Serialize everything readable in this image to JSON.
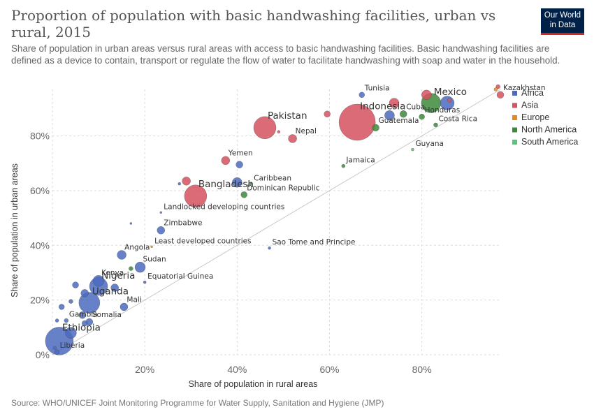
{
  "header": {
    "title": "Proportion of population with basic handwashing facilities, urban vs rural, 2015",
    "subtitle": "Share of population in urban areas versus rural areas with access to basic handwashing facilities. Basic handwashing facilities are defined as a device to contain, transport or regulate the flow of water to facilitate handwashing with soap and water in the household.",
    "logo_line1": "Our World",
    "logo_line2": "in Data"
  },
  "footer": {
    "source": "Source: WHO/UNICEF Joint Monitoring Programme for Water Supply, Sanitation and Hygiene (JMP)"
  },
  "chart_data": {
    "type": "scatter",
    "xlabel": "Share of population in rural areas",
    "ylabel": "Share of population in urban areas",
    "xlim": [
      0,
      97
    ],
    "ylim": [
      0,
      97
    ],
    "x_ticks": [
      20,
      40,
      60,
      80
    ],
    "x_tick_labels": [
      "20%",
      "40%",
      "60%",
      "80%"
    ],
    "y_ticks": [
      0,
      20,
      40,
      60,
      80
    ],
    "y_tick_labels": [
      "0%",
      "20%",
      "40%",
      "60%",
      "80%"
    ],
    "grid": true,
    "diagonal_line": true,
    "legend_position": "right",
    "legend": [
      {
        "name": "Africa",
        "color": "#4c6bbf"
      },
      {
        "name": "Asia",
        "color": "#d5525f"
      },
      {
        "name": "Europe",
        "color": "#e88a19"
      },
      {
        "name": "North America",
        "color": "#3c8a3a"
      },
      {
        "name": "South America",
        "color": "#5fc27a"
      }
    ],
    "points": [
      {
        "label": "Tunisia",
        "region": "Africa",
        "x": 67,
        "y": 95,
        "r": 4
      },
      {
        "label": "Indonesia",
        "region": "Asia",
        "x": 66,
        "y": 85,
        "r": 26
      },
      {
        "label": "Pakistan",
        "region": "Asia",
        "x": 46,
        "y": 83,
        "r": 16
      },
      {
        "label": "Nepal",
        "region": "Asia",
        "x": 52,
        "y": 79,
        "r": 6
      },
      {
        "label": "Mexico",
        "region": "North America",
        "x": 82,
        "y": 92,
        "r": 14
      },
      {
        "label": "Kazakhstan",
        "region": "Asia",
        "x": 97,
        "y": 95,
        "r": 5
      },
      {
        "label": "Cuba",
        "region": "North America",
        "x": 76,
        "y": 88,
        "r": 5
      },
      {
        "label": "Honduras",
        "region": "North America",
        "x": 80,
        "y": 87,
        "r": 4
      },
      {
        "label": "Costa Rica",
        "region": "North America",
        "x": 83,
        "y": 84,
        "r": 3
      },
      {
        "label": "Guatemala",
        "region": "North America",
        "x": 70,
        "y": 83,
        "r": 5
      },
      {
        "label": "Guyana",
        "region": "South America",
        "x": 78,
        "y": 75,
        "r": 2
      },
      {
        "label": "Jamaica",
        "region": "North America",
        "x": 63,
        "y": 69,
        "r": 2.5
      },
      {
        "label": "Yemen",
        "region": "Asia",
        "x": 37.5,
        "y": 71,
        "r": 6
      },
      {
        "label": "Bangladesh",
        "region": "Asia",
        "x": 31,
        "y": 58,
        "r": 16
      },
      {
        "label": "Caribbean",
        "region": "North America",
        "x": 43,
        "y": 62.5,
        "r": 1.5
      },
      {
        "label": "Dominican Republic",
        "region": "North America",
        "x": 41.5,
        "y": 58.5,
        "r": 4.5
      },
      {
        "label": "Landlocked developing countries",
        "region": "Africa",
        "x": 23.5,
        "y": 52,
        "r": 1.5
      },
      {
        "label": "Zimbabwe",
        "region": "Africa",
        "x": 23.5,
        "y": 45.5,
        "r": 5.5
      },
      {
        "label": "Least developed countries",
        "region": "Europe",
        "x": 21.5,
        "y": 39.5,
        "r": 1.5
      },
      {
        "label": "Sao Tome and Principe",
        "region": "Africa",
        "x": 47,
        "y": 39,
        "r": 2
      },
      {
        "label": "Angola",
        "region": "Africa",
        "x": 15,
        "y": 36.5,
        "r": 6.5
      },
      {
        "label": "Sudan",
        "region": "Africa",
        "x": 19,
        "y": 32,
        "r": 7.5
      },
      {
        "label": "Equatorial Guinea",
        "region": "Africa",
        "x": 20,
        "y": 26.5,
        "r": 2
      },
      {
        "label": "Kenya",
        "region": "Africa",
        "x": 10,
        "y": 27,
        "r": 8
      },
      {
        "label": "Nigeria",
        "region": "Africa",
        "x": 10,
        "y": 25,
        "r": 13
      },
      {
        "label": "Mali",
        "region": "Africa",
        "x": 15.5,
        "y": 17.5,
        "r": 5.5
      },
      {
        "label": "Uganda",
        "region": "Africa",
        "x": 8,
        "y": 19,
        "r": 15
      },
      {
        "label": "Gambia",
        "region": "Africa",
        "x": 3,
        "y": 12.5,
        "r": 3
      },
      {
        "label": "Somalia",
        "region": "Africa",
        "x": 8,
        "y": 12,
        "r": 5
      },
      {
        "label": "Ethiopia",
        "region": "Africa",
        "x": 1.5,
        "y": 5,
        "r": 20
      },
      {
        "label": "Liberia",
        "region": "Africa",
        "x": 1,
        "y": 1,
        "r": 3.5
      },
      {
        "label": "",
        "region": "Asia",
        "x": 81,
        "y": 95,
        "r": 7
      },
      {
        "label": "",
        "region": "Asia",
        "x": 74,
        "y": 92,
        "r": 7
      },
      {
        "label": "",
        "region": "Asia",
        "x": 86,
        "y": 93,
        "r": 3
      },
      {
        "label": "",
        "region": "Africa",
        "x": 85.5,
        "y": 92,
        "r": 10
      },
      {
        "label": "",
        "region": "Africa",
        "x": 73,
        "y": 87.5,
        "r": 7
      },
      {
        "label": "",
        "region": "Asia",
        "x": 59.5,
        "y": 88,
        "r": 4.5
      },
      {
        "label": "",
        "region": "Asia",
        "x": 49,
        "y": 81.5,
        "r": 2
      },
      {
        "label": "",
        "region": "Europe",
        "x": 96,
        "y": 97,
        "r": 2.5
      },
      {
        "label": "",
        "region": "Asia",
        "x": 96.5,
        "y": 98,
        "r": 3
      },
      {
        "label": "",
        "region": "Africa",
        "x": 40.5,
        "y": 69.5,
        "r": 5
      },
      {
        "label": "",
        "region": "Asia",
        "x": 29,
        "y": 63.5,
        "r": 6
      },
      {
        "label": "",
        "region": "Africa",
        "x": 27.5,
        "y": 62.5,
        "r": 2
      },
      {
        "label": "",
        "region": "Africa",
        "x": 40,
        "y": 63,
        "r": 7
      },
      {
        "label": "",
        "region": "Africa",
        "x": 17,
        "y": 48,
        "r": 1.5
      },
      {
        "label": "",
        "region": "North America",
        "x": 17,
        "y": 31.5,
        "r": 3
      },
      {
        "label": "",
        "region": "Africa",
        "x": 5,
        "y": 25.5,
        "r": 4.5
      },
      {
        "label": "",
        "region": "Africa",
        "x": 13.5,
        "y": 24.5,
        "r": 5.5
      },
      {
        "label": "",
        "region": "Africa",
        "x": 4,
        "y": 19.5,
        "r": 3
      },
      {
        "label": "",
        "region": "Africa",
        "x": 2,
        "y": 17.5,
        "r": 4
      },
      {
        "label": "",
        "region": "Africa",
        "x": 7,
        "y": 22.5,
        "r": 5.5
      },
      {
        "label": "",
        "region": "Africa",
        "x": 6.5,
        "y": 14.5,
        "r": 5
      },
      {
        "label": "",
        "region": "Africa",
        "x": 7,
        "y": 11.5,
        "r": 4
      },
      {
        "label": "",
        "region": "Africa",
        "x": 1,
        "y": 12.5,
        "r": 2.5
      },
      {
        "label": "",
        "region": "Africa",
        "x": 4,
        "y": 8,
        "r": 8
      },
      {
        "label": "",
        "region": "Africa",
        "x": 0.5,
        "y": 2.5,
        "r": 2.5
      }
    ]
  }
}
